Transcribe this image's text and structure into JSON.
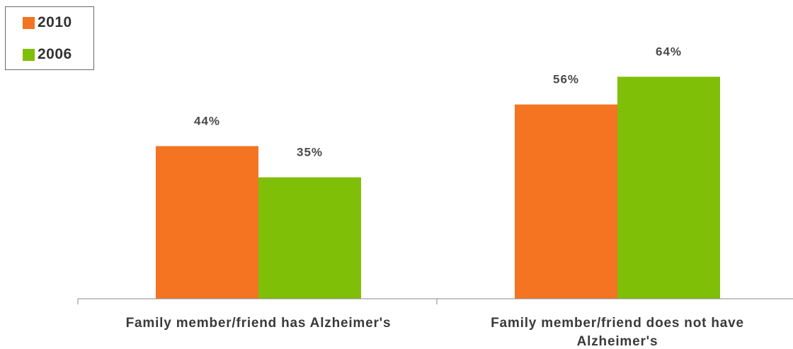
{
  "chart_data": {
    "type": "bar",
    "categories": [
      [
        "Family member/friend has Alzheimer's"
      ],
      [
        "Family member/friend does not have",
        "Alzheimer's"
      ]
    ],
    "series": [
      {
        "name": "2010",
        "values": [
          44,
          56
        ],
        "labels": [
          "44%",
          "56%"
        ],
        "color": "#F47422"
      },
      {
        "name": "2006",
        "values": [
          35,
          64
        ],
        "labels": [
          "35%",
          "64%"
        ],
        "color": "#80BF07"
      }
    ],
    "ylim": [
      0,
      100
    ],
    "grid": false,
    "legend_position": "top-left",
    "title": "",
    "xlabel": "",
    "ylabel": ""
  }
}
